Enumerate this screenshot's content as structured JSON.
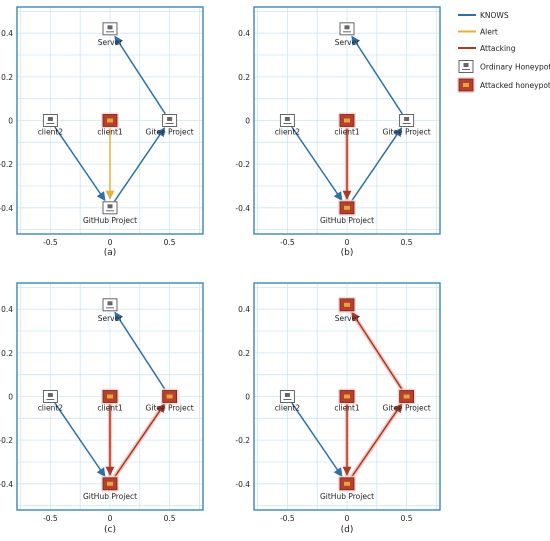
{
  "legend": [
    {
      "key": "knows",
      "label": "KNOWS",
      "kind": "line",
      "color": "#2f6fa7"
    },
    {
      "key": "alert",
      "label": "Alert",
      "kind": "line",
      "color": "#e3b23c"
    },
    {
      "key": "attacking",
      "label": "Attacking",
      "kind": "line",
      "color": "#a83a2a"
    },
    {
      "key": "ordinary",
      "label": "Ordinary Honeypot",
      "kind": "icon-ordinary"
    },
    {
      "key": "attacked",
      "label": "Attacked honeypot",
      "kind": "icon-attacked"
    }
  ],
  "axes": {
    "x_ticks": [
      "-0.5",
      "0",
      "0.5"
    ],
    "y_ticks": [
      "0.4",
      "0.2",
      "0",
      "-0.2",
      "-0.4"
    ]
  },
  "nodes": [
    {
      "id": "server",
      "label": "Server"
    },
    {
      "id": "client2",
      "label": "client2"
    },
    {
      "id": "client1",
      "label": "client1"
    },
    {
      "id": "gitee",
      "label": "Gitee Project"
    },
    {
      "id": "github",
      "label": "GitHub Project"
    }
  ],
  "panels": [
    {
      "caption": "(a)",
      "attacked": [
        "client1"
      ],
      "edges": [
        {
          "from": "gitee",
          "to": "server",
          "type": "knows"
        },
        {
          "from": "client2",
          "to": "github",
          "type": "knows"
        },
        {
          "from": "github",
          "to": "gitee",
          "type": "knows"
        },
        {
          "from": "client1",
          "to": "github",
          "type": "alert"
        }
      ]
    },
    {
      "caption": "(b)",
      "attacked": [
        "client1",
        "github"
      ],
      "edges": [
        {
          "from": "gitee",
          "to": "server",
          "type": "knows"
        },
        {
          "from": "client2",
          "to": "github",
          "type": "knows"
        },
        {
          "from": "github",
          "to": "gitee",
          "type": "knows"
        },
        {
          "from": "client1",
          "to": "github",
          "type": "attacking"
        }
      ]
    },
    {
      "caption": "(c)",
      "attacked": [
        "client1",
        "github",
        "gitee"
      ],
      "edges": [
        {
          "from": "gitee",
          "to": "server",
          "type": "knows"
        },
        {
          "from": "client2",
          "to": "github",
          "type": "knows"
        },
        {
          "from": "github",
          "to": "gitee",
          "type": "attacking"
        },
        {
          "from": "client1",
          "to": "github",
          "type": "attacking"
        }
      ]
    },
    {
      "caption": "(d)",
      "attacked": [
        "client1",
        "github",
        "gitee",
        "server"
      ],
      "edges": [
        {
          "from": "gitee",
          "to": "server",
          "type": "attacking"
        },
        {
          "from": "client2",
          "to": "github",
          "type": "knows"
        },
        {
          "from": "github",
          "to": "gitee",
          "type": "attacking"
        },
        {
          "from": "client1",
          "to": "github",
          "type": "attacking"
        }
      ]
    }
  ]
}
